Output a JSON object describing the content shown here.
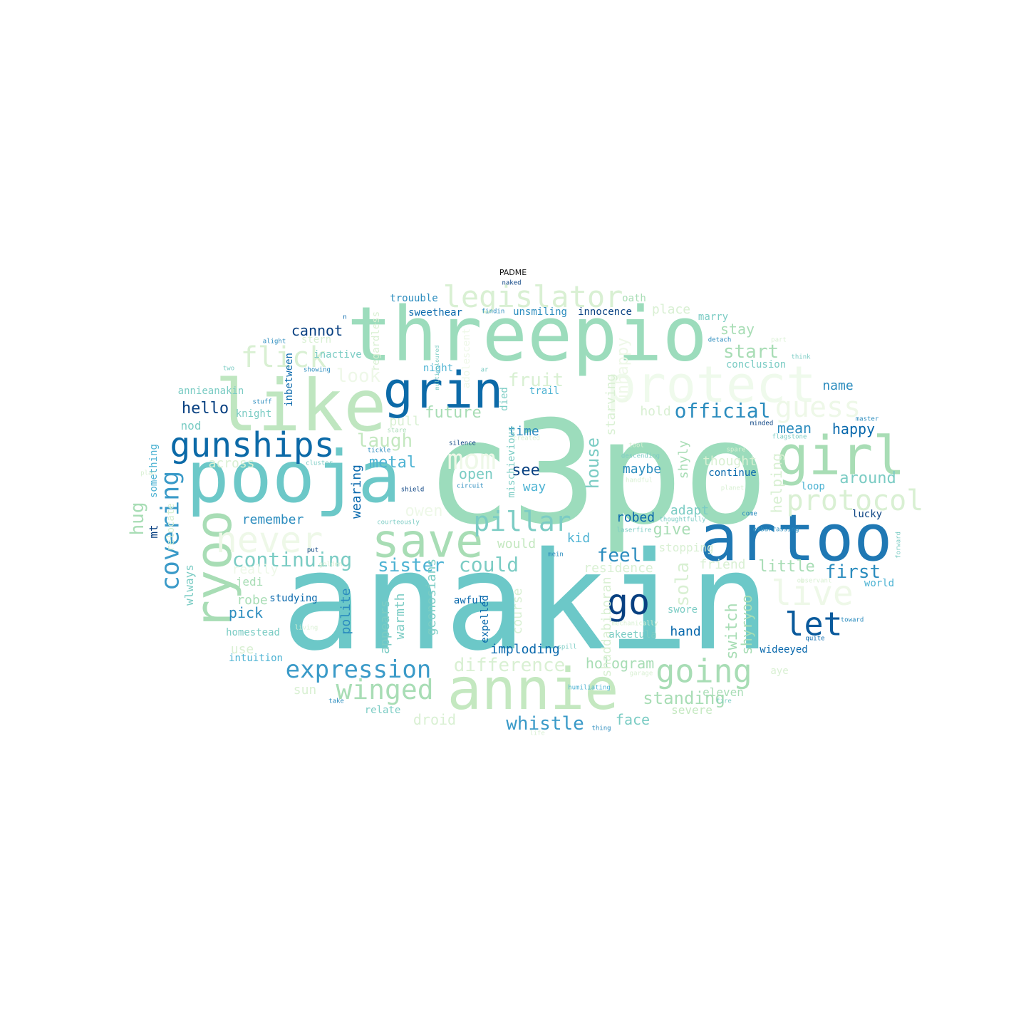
{
  "title": "PADME",
  "palette": [
    "#eef8e8",
    "#d9f0d3",
    "#c4e8c0",
    "#a8ddb5",
    "#7bccc4",
    "#4eb3d3",
    "#2b8cbe",
    "#0868ac",
    "#084081"
  ],
  "words": [
    {
      "text": "anakin",
      "weight": 1.0,
      "color": "#6cc8c8"
    },
    {
      "text": "c3po",
      "weight": 0.98,
      "color": "#9cdcbc"
    },
    {
      "text": "threepio",
      "weight": 0.62,
      "color": "#9cdcbc"
    },
    {
      "text": "artoo",
      "weight": 0.52,
      "color": "#1f78b4"
    },
    {
      "text": "pooja",
      "weight": 0.52,
      "color": "#6cc8c8"
    },
    {
      "text": "like",
      "weight": 0.52,
      "color": "#bfe6c0"
    },
    {
      "text": "protect",
      "weight": 0.4,
      "color": "#effaec"
    },
    {
      "text": "annie",
      "weight": 0.44,
      "color": "#c4e8c0"
    },
    {
      "text": "save",
      "weight": 0.38,
      "color": "#a8ddb5"
    },
    {
      "text": "grin",
      "weight": 0.36,
      "color": "#0c6aa8"
    },
    {
      "text": "girl",
      "weight": 0.34,
      "color": "#a8ddb5"
    },
    {
      "text": "ryoo",
      "weight": 0.34,
      "color": "#a8ddb5"
    },
    {
      "text": "gunships",
      "weight": 0.28,
      "color": "#0c6aa8"
    },
    {
      "text": "never",
      "weight": 0.27,
      "color": "#eef8e8"
    },
    {
      "text": "legislator",
      "weight": 0.24,
      "color": "#d9f0d3"
    },
    {
      "text": "protocol",
      "weight": 0.24,
      "color": "#d9f0d3"
    },
    {
      "text": "going",
      "weight": 0.24,
      "color": "#a8ddb5"
    },
    {
      "text": "let",
      "weight": 0.26,
      "color": "#0a5a9c"
    },
    {
      "text": "go",
      "weight": 0.28,
      "color": "#084081"
    },
    {
      "text": "live",
      "weight": 0.26,
      "color": "#eef8e8"
    },
    {
      "text": "pillar",
      "weight": 0.22,
      "color": "#7bccc4"
    },
    {
      "text": "winged",
      "weight": 0.22,
      "color": "#a8ddb5"
    },
    {
      "text": "expression",
      "weight": 0.22,
      "color": "#3a9ac8"
    },
    {
      "text": "flick",
      "weight": 0.22,
      "color": "#d9f0d3"
    },
    {
      "text": "covering",
      "weight": 0.22,
      "color": "#3a9ac8"
    },
    {
      "text": "guess",
      "weight": 0.2,
      "color": "#eef8e8"
    },
    {
      "text": "mom",
      "weight": 0.2,
      "color": "#eef8e8"
    },
    {
      "text": "could",
      "weight": 0.16,
      "color": "#7bccc4"
    },
    {
      "text": "continuing",
      "weight": 0.16,
      "color": "#7bccc4"
    },
    {
      "text": "official",
      "weight": 0.16,
      "color": "#2b8cbe"
    },
    {
      "text": "sister",
      "weight": 0.16,
      "color": "#4eb3d3"
    },
    {
      "text": "hug",
      "weight": 0.16,
      "color": "#a8ddb5"
    },
    {
      "text": "laugh",
      "weight": 0.15,
      "color": "#c4e8c0"
    },
    {
      "text": "fruit",
      "weight": 0.15,
      "color": "#d9f0d3"
    },
    {
      "text": "feel",
      "weight": 0.15,
      "color": "#2b8cbe"
    },
    {
      "text": "first",
      "weight": 0.15,
      "color": "#2b8cbe"
    },
    {
      "text": "start",
      "weight": 0.15,
      "color": "#a8ddb5"
    },
    {
      "text": "look",
      "weight": 0.14,
      "color": "#eef8e8"
    },
    {
      "text": "difference",
      "weight": 0.14,
      "color": "#d9f0d3"
    },
    {
      "text": "whistle",
      "weight": 0.14,
      "color": "#3a9ac8"
    },
    {
      "text": "sola",
      "weight": 0.14,
      "color": "#d9f0d3"
    },
    {
      "text": "house",
      "weight": 0.14,
      "color": "#7bccc4"
    },
    {
      "text": "standing",
      "weight": 0.14,
      "color": "#a8ddb5"
    },
    {
      "text": "hello",
      "weight": 0.13,
      "color": "#084081"
    },
    {
      "text": "future",
      "weight": 0.13,
      "color": "#a8ddb5"
    },
    {
      "text": "give",
      "weight": 0.13,
      "color": "#a8ddb5"
    },
    {
      "text": "switch",
      "weight": 0.13,
      "color": "#a8ddb5"
    },
    {
      "text": "little",
      "weight": 0.13,
      "color": "#a8ddb5"
    },
    {
      "text": "see",
      "weight": 0.13,
      "color": "#084081"
    },
    {
      "text": "metal",
      "weight": 0.13,
      "color": "#4eb3d3"
    },
    {
      "text": "around",
      "weight": 0.13,
      "color": "#7bccc4"
    },
    {
      "text": "cannot",
      "weight": 0.12,
      "color": "#084081"
    },
    {
      "text": "helping",
      "weight": 0.12,
      "color": "#d9f0d3"
    },
    {
      "text": "owen",
      "weight": 0.12,
      "color": "#eef8e8"
    },
    {
      "text": "open",
      "weight": 0.12,
      "color": "#7bccc4"
    },
    {
      "text": "hologram",
      "weight": 0.12,
      "color": "#a8ddb5"
    },
    {
      "text": "stay",
      "weight": 0.12,
      "color": "#a8ddb5"
    },
    {
      "text": "shyryoo",
      "weight": 0.12,
      "color": "#a8ddb5"
    },
    {
      "text": "happy",
      "weight": 0.12,
      "color": "#0868ac"
    },
    {
      "text": "mean",
      "weight": 0.12,
      "color": "#2b8cbe"
    },
    {
      "text": "face",
      "weight": 0.12,
      "color": "#7bccc4"
    },
    {
      "text": "place",
      "weight": 0.12,
      "color": "#d9f0d3"
    },
    {
      "text": "name",
      "weight": 0.12,
      "color": "#2b8cbe"
    },
    {
      "text": "would",
      "weight": 0.12,
      "color": "#c4e8c0"
    },
    {
      "text": "residence",
      "weight": 0.12,
      "color": "#d9f0d3"
    },
    {
      "text": "droid",
      "weight": 0.12,
      "color": "#d9f0d3"
    },
    {
      "text": "hand",
      "weight": 0.12,
      "color": "#0868ac"
    },
    {
      "text": "maybe",
      "weight": 0.11,
      "color": "#2b8cbe"
    },
    {
      "text": "time",
      "weight": 0.11,
      "color": "#2b8cbe"
    },
    {
      "text": "pick",
      "weight": 0.11,
      "color": "#2b8cbe"
    },
    {
      "text": "really",
      "weight": 0.11,
      "color": "#eef8e8"
    },
    {
      "text": "across",
      "weight": 0.11,
      "color": "#d9f0d3"
    },
    {
      "text": "remember",
      "weight": 0.11,
      "color": "#2b8cbe"
    },
    {
      "text": "friend",
      "weight": 0.11,
      "color": "#d9f0d3"
    },
    {
      "text": "thought",
      "weight": 0.11,
      "color": "#d9f0d3"
    },
    {
      "text": "adapt",
      "weight": 0.11,
      "color": "#7bccc4"
    },
    {
      "text": "robed",
      "weight": 0.11,
      "color": "#0868ac"
    },
    {
      "text": "way",
      "weight": 0.11,
      "color": "#4eb3d3"
    },
    {
      "text": "kid",
      "weight": 0.11,
      "color": "#4eb3d3"
    },
    {
      "text": "pull",
      "weight": 0.11,
      "color": "#d9f0d3"
    },
    {
      "text": "hold",
      "weight": 0.11,
      "color": "#d9f0d3"
    },
    {
      "text": "shyly",
      "weight": 0.11,
      "color": "#a8ddb5"
    },
    {
      "text": "starving",
      "weight": 0.11,
      "color": "#d9f0d3"
    },
    {
      "text": "warmth",
      "weight": 0.11,
      "color": "#7bccc4"
    },
    {
      "text": "geonosians",
      "weight": 0.11,
      "color": "#7bccc4"
    },
    {
      "text": "course",
      "weight": 0.11,
      "color": "#d9f0d3"
    },
    {
      "text": "appears",
      "weight": 0.11,
      "color": "#7bccc4"
    },
    {
      "text": "polite",
      "weight": 0.11,
      "color": "#2b8cbe"
    },
    {
      "text": "wearing",
      "weight": 0.11,
      "color": "#0868ac"
    },
    {
      "text": "imploding",
      "weight": 0.11,
      "color": "#0868ac"
    },
    {
      "text": "shaddabiboran",
      "weight": 0.11,
      "color": "#d9f0d3"
    },
    {
      "text": "sun",
      "weight": 0.1,
      "color": "#d9f0d3"
    },
    {
      "text": "use",
      "weight": 0.1,
      "color": "#d9f0d3"
    },
    {
      "text": "robe",
      "weight": 0.1,
      "color": "#a8ddb5"
    },
    {
      "text": "jedi",
      "weight": 0.1,
      "color": "#a8ddb5"
    },
    {
      "text": "nod",
      "weight": 0.1,
      "color": "#7bccc4"
    },
    {
      "text": "eleven",
      "weight": 0.1,
      "color": "#a8ddb5"
    },
    {
      "text": "severe",
      "weight": 0.1,
      "color": "#c4e8c0"
    },
    {
      "text": "mt",
      "weight": 0.1,
      "color": "#084081"
    },
    {
      "text": "wlways",
      "weight": 0.1,
      "color": "#7bccc4"
    },
    {
      "text": "relocate",
      "weight": 0.1,
      "color": "#d9f0d3"
    },
    {
      "text": "something",
      "weight": 0.1,
      "color": "#4eb3d3"
    },
    {
      "text": "homestead",
      "weight": 0.09,
      "color": "#7bccc4"
    },
    {
      "text": "intuition",
      "weight": 0.09,
      "color": "#4eb3d3"
    },
    {
      "text": "relate",
      "weight": 0.09,
      "color": "#7bccc4"
    },
    {
      "text": "awful",
      "weight": 0.09,
      "color": "#0868ac"
    },
    {
      "text": "expelled",
      "weight": 0.09,
      "color": "#0868ac"
    },
    {
      "text": "studying",
      "weight": 0.09,
      "color": "#0868ac"
    },
    {
      "text": "akeetula",
      "weight": 0.09,
      "color": "#7bccc4"
    },
    {
      "text": "wideeyed",
      "weight": 0.09,
      "color": "#0868ac"
    },
    {
      "text": "swore",
      "weight": 0.09,
      "color": "#7bccc4"
    },
    {
      "text": "aye",
      "weight": 0.09,
      "color": "#d9f0d3"
    },
    {
      "text": "world",
      "weight": 0.09,
      "color": "#4eb3d3"
    },
    {
      "text": "loop",
      "weight": 0.09,
      "color": "#4eb3d3"
    },
    {
      "text": "lucky",
      "weight": 0.09,
      "color": "#084081"
    },
    {
      "text": "continue",
      "weight": 0.09,
      "color": "#0868ac"
    },
    {
      "text": "conclusion",
      "weight": 0.09,
      "color": "#7bccc4"
    },
    {
      "text": "marry",
      "weight": 0.09,
      "color": "#7bccc4"
    },
    {
      "text": "innocence",
      "weight": 0.09,
      "color": "#084081"
    },
    {
      "text": "oath",
      "weight": 0.09,
      "color": "#a8ddb5"
    },
    {
      "text": "unsmiling",
      "weight": 0.09,
      "color": "#2b8cbe"
    },
    {
      "text": "trouuble",
      "weight": 0.09,
      "color": "#2b8cbe"
    },
    {
      "text": "sweethear",
      "weight": 0.09,
      "color": "#0868ac"
    },
    {
      "text": "inactive",
      "weight": 0.09,
      "color": "#7bccc4"
    },
    {
      "text": "stern",
      "weight": 0.09,
      "color": "#d9f0d3"
    },
    {
      "text": "night",
      "weight": 0.09,
      "color": "#4eb3d3"
    },
    {
      "text": "adolescent",
      "weight": 0.09,
      "color": "#eef8e8"
    },
    {
      "text": "trail",
      "weight": 0.09,
      "color": "#4eb3d3"
    },
    {
      "text": "died",
      "weight": 0.09,
      "color": "#7bccc4"
    },
    {
      "text": "mischievious",
      "weight": 0.09,
      "color": "#7bccc4"
    },
    {
      "text": "regardless",
      "weight": 0.09,
      "color": "#d9f0d3"
    },
    {
      "text": "inbetween",
      "weight": 0.09,
      "color": "#0868ac"
    },
    {
      "text": "annieanakin",
      "weight": 0.08,
      "color": "#7bccc4"
    },
    {
      "text": "knight",
      "weight": 0.08,
      "color": "#7bccc4"
    },
    {
      "text": "unhappy",
      "weight": 0.08,
      "color": "#eef8e8"
    },
    {
      "text": "ar",
      "weight": 0.08,
      "color": "#7bccc4"
    },
    {
      "text": "n",
      "weight": 0.1,
      "color": "#0868ac"
    },
    {
      "text": "naked",
      "weight": 0.06,
      "color": "#084081"
    },
    {
      "text": "findin",
      "weight": 0.06,
      "color": "#2b8cbe"
    },
    {
      "text": "detach",
      "weight": 0.06,
      "color": "#2b8cbe"
    },
    {
      "text": "part",
      "weight": 0.06,
      "color": "#d9f0d3"
    },
    {
      "text": "think",
      "weight": 0.06,
      "color": "#7bccc4"
    },
    {
      "text": "two",
      "weight": 0.06,
      "color": "#7bccc4"
    },
    {
      "text": "showing",
      "weight": 0.06,
      "color": "#2b8cbe"
    },
    {
      "text": "alight",
      "weight": 0.06,
      "color": "#2b8cbe"
    },
    {
      "text": "stuff",
      "weight": 0.06,
      "color": "#2b8cbe"
    },
    {
      "text": "stare",
      "weight": 0.06,
      "color": "#a8ddb5"
    },
    {
      "text": "tickle",
      "weight": 0.06,
      "color": "#2b8cbe"
    },
    {
      "text": "silence",
      "weight": 0.06,
      "color": "#084081"
    },
    {
      "text": "created",
      "weight": 0.06,
      "color": "#d9f0d3"
    },
    {
      "text": "minded",
      "weight": 0.06,
      "color": "#084081"
    },
    {
      "text": "flagstone",
      "weight": 0.06,
      "color": "#7bccc4"
    },
    {
      "text": "master",
      "weight": 0.06,
      "color": "#2b8cbe"
    },
    {
      "text": "tool",
      "weight": 0.06,
      "color": "#d9f0d3"
    },
    {
      "text": "descending",
      "weight": 0.06,
      "color": "#7bccc4"
    },
    {
      "text": "spare",
      "weight": 0.06,
      "color": "#d9f0d3"
    },
    {
      "text": "handful",
      "weight": 0.06,
      "color": "#d9f0d3"
    },
    {
      "text": "planet",
      "weight": 0.06,
      "color": "#d9f0d3"
    },
    {
      "text": "cluster",
      "weight": 0.06,
      "color": "#7bccc4"
    },
    {
      "text": "shield",
      "weight": 0.06,
      "color": "#084081"
    },
    {
      "text": "circuit",
      "weight": 0.06,
      "color": "#2b8cbe"
    },
    {
      "text": "plan",
      "weight": 0.06,
      "color": "#d9f0d3"
    },
    {
      "text": "courteously",
      "weight": 0.06,
      "color": "#7bccc4"
    },
    {
      "text": "come",
      "weight": 0.06,
      "color": "#2b8cbe"
    },
    {
      "text": "laserfire",
      "weight": 0.06,
      "color": "#7bccc4"
    },
    {
      "text": "embarrassing",
      "weight": 0.06,
      "color": "#2b8cbe"
    },
    {
      "text": "golden",
      "weight": 0.06,
      "color": "#d9f0d3"
    },
    {
      "text": "put",
      "weight": 0.06,
      "color": "#084081"
    },
    {
      "text": "mein",
      "weight": 0.06,
      "color": "#2b8cbe"
    },
    {
      "text": "observant",
      "weight": 0.06,
      "color": "#d9f0d3"
    },
    {
      "text": "living",
      "weight": 0.06,
      "color": "#d9f0d3"
    },
    {
      "text": "mechanically",
      "weight": 0.06,
      "color": "#d9f0d3"
    },
    {
      "text": "toward",
      "weight": 0.06,
      "color": "#2b8cbe"
    },
    {
      "text": "quite",
      "weight": 0.06,
      "color": "#0868ac"
    },
    {
      "text": "spill",
      "weight": 0.06,
      "color": "#7bccc4"
    },
    {
      "text": "humiliating",
      "weight": 0.06,
      "color": "#4eb3d3"
    },
    {
      "text": "garage",
      "weight": 0.06,
      "color": "#d9f0d3"
    },
    {
      "text": "take",
      "weight": 0.06,
      "color": "#2b8cbe"
    },
    {
      "text": "fire",
      "weight": 0.06,
      "color": "#7bccc4"
    },
    {
      "text": "thing",
      "weight": 0.06,
      "color": "#2b8cbe"
    },
    {
      "text": "life",
      "weight": 0.06,
      "color": "#d9f0d3"
    },
    {
      "text": "forward",
      "weight": 0.06,
      "color": "#7bccc4"
    },
    {
      "text": "multicoloured",
      "weight": 0.06,
      "color": "#7bccc4"
    },
    {
      "text": "thoughtfully",
      "weight": 0.06,
      "color": "#7bccc4"
    },
    {
      "text": "stopping",
      "weight": 0.06,
      "color": "#d9f0d3"
    },
    {
      "text": "oooooh",
      "weight": 0.06,
      "color": "#d9f0d3"
    },
    {
      "text": "..?",
      "weight": 0.07,
      "color": "#7bccc4"
    }
  ]
}
